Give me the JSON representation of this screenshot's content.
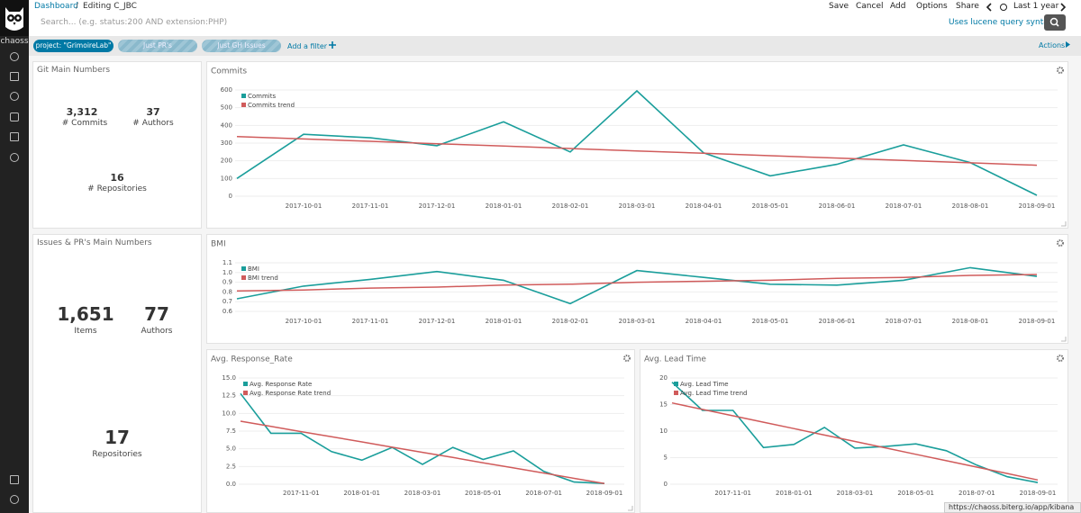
{
  "sidebar": {
    "brand": "chaoss"
  },
  "top_nav": {
    "breadcrumb": [
      "Dashboard",
      "Editing C_JBC"
    ],
    "breadcrumb_separator": "/",
    "actions": [
      "Save",
      "Cancel",
      "Add",
      "Options",
      "Share"
    ],
    "time_range": "Last 1 year"
  },
  "search": {
    "placeholder": "Search... (e.g. status:200 AND extension:PHP)",
    "syntax_link": "Uses lucene query syntax"
  },
  "filters": {
    "pills": [
      "project: \"GrimoireLab\"",
      "Just PR's",
      "Just GH Issues"
    ],
    "add": "Add a filter",
    "actions": "Actions"
  },
  "metric_panels": [
    {
      "title": "Git Main Numbers",
      "metrics": [
        {
          "value": "3,312",
          "label": "# Commits"
        },
        {
          "value": "37",
          "label": "# Authors"
        },
        {
          "value": "16",
          "label": "# Repositories"
        }
      ]
    },
    {
      "title": "Issues & PR's Main Numbers",
      "metrics": [
        {
          "value": "1,651",
          "label": "Items"
        },
        {
          "value": "77",
          "label": "Authors"
        },
        {
          "value": "17",
          "label": "Repositories"
        }
      ]
    }
  ],
  "chart_data": [
    {
      "type": "line",
      "title": "Commits",
      "categories": [
        null,
        "2017-10-01",
        "2017-11-01",
        "2017-12-01",
        "2018-01-01",
        "2018-02-01",
        "2018-03-01",
        "2018-04-01",
        "2018-05-01",
        "2018-06-01",
        "2018-07-01",
        "2018-08-01",
        "2018-09-01"
      ],
      "series": [
        {
          "name": "Commits",
          "color": "#1a9e9b",
          "values": [
            100,
            350,
            330,
            285,
            420,
            250,
            595,
            245,
            115,
            180,
            290,
            190,
            5
          ]
        },
        {
          "name": "Commits trend",
          "color": "#d05b5b",
          "values": [
            337,
            323.5,
            310,
            296.5,
            283,
            269.5,
            256,
            242.5,
            229,
            215.5,
            202,
            188.5,
            175
          ]
        }
      ],
      "ylim": [
        0,
        600
      ],
      "yticks": [
        0,
        100,
        200,
        300,
        400,
        500,
        600
      ],
      "grid": true
    },
    {
      "type": "line",
      "title": "BMI",
      "categories": [
        null,
        "2017-10-01",
        "2017-11-01",
        "2017-12-01",
        "2018-01-01",
        "2018-02-01",
        "2018-03-01",
        "2018-04-01",
        "2018-05-01",
        "2018-06-01",
        "2018-07-01",
        "2018-08-01",
        "2018-09-01"
      ],
      "series": [
        {
          "name": "BMI",
          "color": "#1a9e9b",
          "values": [
            0.73,
            0.86,
            0.93,
            1.01,
            0.92,
            0.68,
            1.02,
            0.95,
            0.88,
            0.87,
            0.92,
            1.05,
            0.96
          ]
        },
        {
          "name": "BMI trend",
          "color": "#d05b5b",
          "values": [
            0.81,
            0.82,
            0.84,
            0.85,
            0.87,
            0.88,
            0.9,
            0.91,
            0.92,
            0.94,
            0.95,
            0.97,
            0.98
          ]
        }
      ],
      "ylim": [
        0.6,
        1.1
      ],
      "yticks": [
        0.6,
        0.7,
        0.8,
        0.9,
        {
          "value": 1,
          "label": "1.0"
        },
        1.1
      ],
      "grid": true
    },
    {
      "type": "line",
      "title": "Avg. Response_Rate",
      "categories": [
        null,
        null,
        "2017-11-01",
        null,
        "2018-01-01",
        null,
        "2018-03-01",
        null,
        "2018-05-01",
        null,
        "2018-07-01",
        null,
        "2018-09-01"
      ],
      "series": [
        {
          "name": "Avg. Response Rate",
          "color": "#1a9e9b",
          "values": [
            12.8,
            7.2,
            7.2,
            4.6,
            3.4,
            5.2,
            2.8,
            5.2,
            3.5,
            4.7,
            1.8,
            0.3,
            0.1
          ]
        },
        {
          "name": "Avg. Response Rate trend",
          "color": "#d05b5b",
          "values": [
            8.9,
            8.17,
            7.43,
            6.7,
            5.97,
            5.23,
            4.5,
            3.77,
            3.03,
            2.3,
            1.57,
            0.83,
            0.1
          ]
        }
      ],
      "ylim": [
        0,
        15
      ],
      "yticks": [
        {
          "value": 0,
          "label": "0.0"
        },
        2.5,
        {
          "value": 5,
          "label": "5.0"
        },
        7.5,
        {
          "value": 10,
          "label": "10.0"
        },
        12.5,
        {
          "value": 15,
          "label": "15.0"
        }
      ],
      "grid": true
    },
    {
      "type": "line",
      "title": "Avg. Lead Time",
      "categories": [
        null,
        null,
        "2017-11-01",
        null,
        "2018-01-01",
        null,
        "2018-03-01",
        null,
        "2018-05-01",
        null,
        "2018-07-01",
        null,
        "2018-09-01"
      ],
      "series": [
        {
          "name": "Avg. Lead Time",
          "color": "#1a9e9b",
          "values": [
            19.2,
            13.9,
            13.9,
            6.9,
            7.5,
            10.7,
            6.8,
            7.1,
            7.6,
            6.3,
            3.6,
            1.4,
            0.3
          ]
        },
        {
          "name": "Avg. Lead Time trend",
          "color": "#d05b5b",
          "values": [
            15.3,
            14.09,
            12.88,
            11.68,
            10.47,
            9.26,
            8.05,
            6.84,
            5.63,
            4.43,
            3.22,
            2.01,
            0.8
          ]
        }
      ],
      "ylim": [
        0,
        20
      ],
      "yticks": [
        0,
        5,
        10,
        15,
        20
      ],
      "grid": true
    }
  ],
  "status_url": "https://chaoss.biterg.io/app/kibana"
}
